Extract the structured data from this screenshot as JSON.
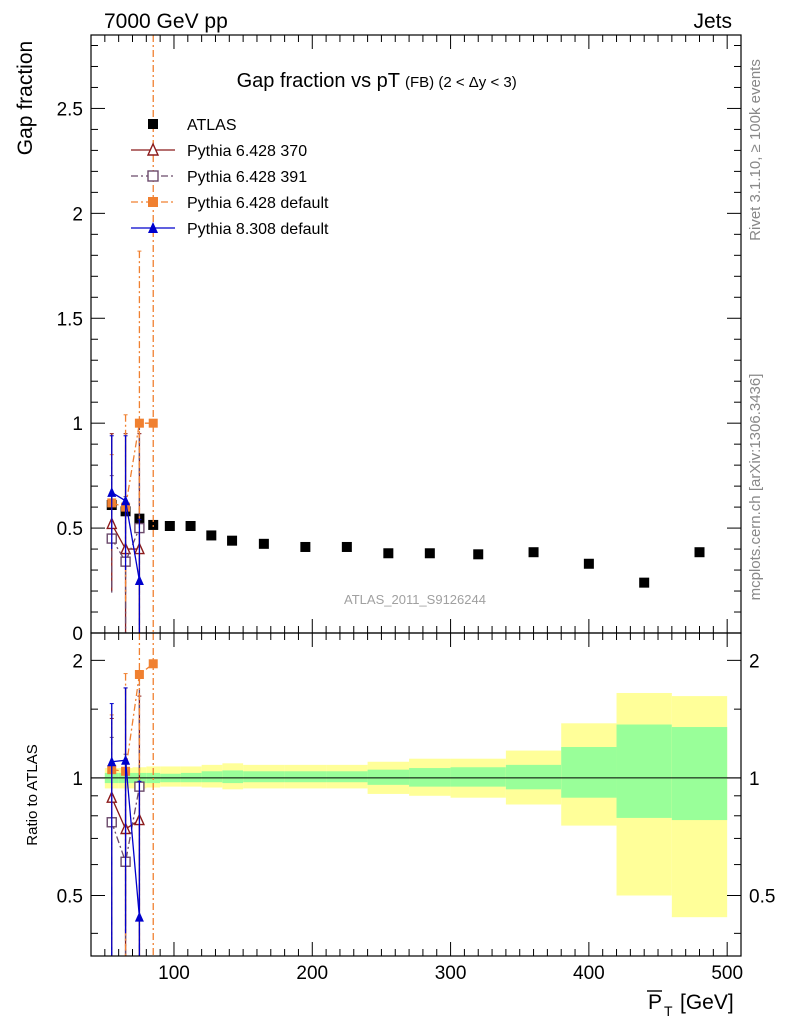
{
  "header": {
    "energy": "7000 GeV pp",
    "process": "Jets",
    "side_top": "Rivet 3.1.10, ≥ 100k events",
    "side_bottom": "mcplots.cern.ch [arXiv:1306.3436]",
    "watermark": "ATLAS_2011_S9126244"
  },
  "chart_data": [
    {
      "type": "scatter",
      "title_main": "Gap fraction vs pT",
      "title_sub": "(FB) (2 < Δy < 3)",
      "ylabel": "Gap fraction",
      "xlim": [
        40,
        510
      ],
      "ylim": [
        0,
        2.85
      ],
      "yticks": [
        0,
        0.5,
        1,
        1.5,
        2,
        2.5
      ],
      "ytick_labels": [
        "0",
        "0.5",
        "1",
        "1.5",
        "2",
        "2.5"
      ],
      "legend_position": "top-left",
      "series": [
        {
          "name": "ATLAS",
          "color": "#000000",
          "marker": "square-filled",
          "x": [
            55,
            65,
            75,
            85,
            97,
            112,
            127,
            142,
            165,
            195,
            225,
            255,
            285,
            320,
            360,
            400,
            440,
            480
          ],
          "y": [
            0.61,
            0.58,
            0.545,
            0.515,
            0.51,
            0.51,
            0.465,
            0.44,
            0.425,
            0.41,
            0.41,
            0.38,
            0.38,
            0.375,
            0.385,
            0.33,
            0.24,
            0.385
          ]
        },
        {
          "name": "Pythia 6.428 370",
          "color": "#8b1a1a",
          "marker": "triangle-open",
          "dash": "solid",
          "x": [
            55,
            65,
            75
          ],
          "y": [
            0.52,
            0.4,
            0.4
          ],
          "ylo": [
            0.2,
            0.0,
            0.0
          ],
          "yhi": [
            0.95,
            0.95,
            0.95
          ]
        },
        {
          "name": "Pythia 6.428 391",
          "color": "#6b4a6b",
          "marker": "square-open",
          "dash": "dashdot",
          "x": [
            55,
            65,
            75
          ],
          "y": [
            0.45,
            0.34,
            0.5
          ],
          "ylo": [
            0.18,
            0.0,
            0.0
          ],
          "yhi": [
            0.75,
            0.65,
            1.0
          ]
        },
        {
          "name": "Pythia 6.428 default",
          "color": "#f08030",
          "marker": "square-filled",
          "dash": "dashdot",
          "x": [
            55,
            65,
            75,
            85
          ],
          "y": [
            0.62,
            0.6,
            1.0,
            1.0
          ],
          "ylo": [
            0.4,
            0.15,
            0.0,
            0.0
          ],
          "yhi": [
            0.85,
            1.04,
            1.82,
            2.85
          ]
        },
        {
          "name": "Pythia 8.308 default",
          "color": "#0000cc",
          "marker": "triangle-filled",
          "dash": "solid",
          "x": [
            55,
            65,
            75
          ],
          "y": [
            0.67,
            0.63,
            0.25
          ],
          "ylo": [
            0.4,
            0.3,
            0.0
          ],
          "yhi": [
            0.94,
            0.94,
            0.54
          ]
        }
      ]
    },
    {
      "type": "scatter",
      "ylabel": "Ratio to ATLAS",
      "xlabel": "P_T [GeV]",
      "xlabel_main": "P",
      "xlabel_sub": "T",
      "xlabel_unit": "[GeV]",
      "xlim": [
        40,
        510
      ],
      "xticks": [
        100,
        200,
        300,
        400,
        500
      ],
      "xtick_labels": [
        "100",
        "200",
        "300",
        "400",
        "500"
      ],
      "ylim": [
        0.35,
        2.35
      ],
      "yscale": "log",
      "yticks": [
        0.5,
        1,
        2
      ],
      "ytick_labels": [
        "0.5",
        "1",
        "2"
      ],
      "bands": {
        "edges": [
          50,
          60,
          70,
          80,
          90,
          105,
          120,
          135,
          150,
          180,
          210,
          240,
          270,
          300,
          340,
          380,
          420,
          460,
          500
        ],
        "inner_lo": [
          0.97,
          0.97,
          0.97,
          0.97,
          0.975,
          0.975,
          0.975,
          0.97,
          0.975,
          0.975,
          0.975,
          0.96,
          0.95,
          0.95,
          0.935,
          0.89,
          0.79,
          0.78
        ],
        "inner_hi": [
          1.03,
          1.03,
          1.03,
          1.03,
          1.025,
          1.03,
          1.04,
          1.045,
          1.04,
          1.04,
          1.04,
          1.05,
          1.06,
          1.065,
          1.08,
          1.2,
          1.37,
          1.35
        ],
        "outer_lo": [
          0.94,
          0.94,
          0.94,
          0.945,
          0.95,
          0.95,
          0.945,
          0.935,
          0.94,
          0.94,
          0.94,
          0.91,
          0.9,
          0.89,
          0.855,
          0.755,
          0.5,
          0.44
        ],
        "outer_hi": [
          1.06,
          1.06,
          1.065,
          1.07,
          1.07,
          1.07,
          1.08,
          1.09,
          1.08,
          1.08,
          1.08,
          1.1,
          1.12,
          1.12,
          1.175,
          1.38,
          1.65,
          1.62
        ],
        "inner_color": "#99ff99",
        "outer_color": "#ffff99"
      },
      "series": [
        {
          "name": "Pythia 6.428 370",
          "color": "#8b1a1a",
          "marker": "triangle-open",
          "dash": "solid",
          "x": [
            55,
            65,
            75
          ],
          "y": [
            0.89,
            0.74,
            0.78
          ],
          "ylo": [
            0.3,
            0.3,
            0.3
          ],
          "yhi": [
            1.42,
            1.7,
            1.62
          ]
        },
        {
          "name": "Pythia 6.428 391",
          "color": "#6b4a6b",
          "marker": "square-open",
          "dash": "dashdot",
          "x": [
            55,
            65,
            75
          ],
          "y": [
            0.77,
            0.61,
            0.95
          ],
          "ylo": [
            0.3,
            0.3,
            0.3
          ],
          "yhi": [
            1.27,
            1.15,
            1.85
          ]
        },
        {
          "name": "Pythia 6.428 default",
          "color": "#f08030",
          "marker": "square-filled",
          "dash": "dashdot",
          "x": [
            55,
            65,
            75,
            85
          ],
          "y": [
            1.05,
            1.04,
            1.84,
            1.96
          ],
          "ylo": [
            0.3,
            0.3,
            0.3,
            0.3
          ],
          "yhi": [
            1.45,
            1.85,
            2.35,
            2.35
          ]
        },
        {
          "name": "Pythia 8.308 default",
          "color": "#0000cc",
          "marker": "triangle-filled",
          "dash": "solid",
          "x": [
            55,
            65,
            75
          ],
          "y": [
            1.1,
            1.11,
            0.44
          ],
          "ylo": [
            0.3,
            0.4,
            0.3
          ],
          "yhi": [
            1.55,
            1.7,
            0.98
          ]
        }
      ]
    }
  ]
}
